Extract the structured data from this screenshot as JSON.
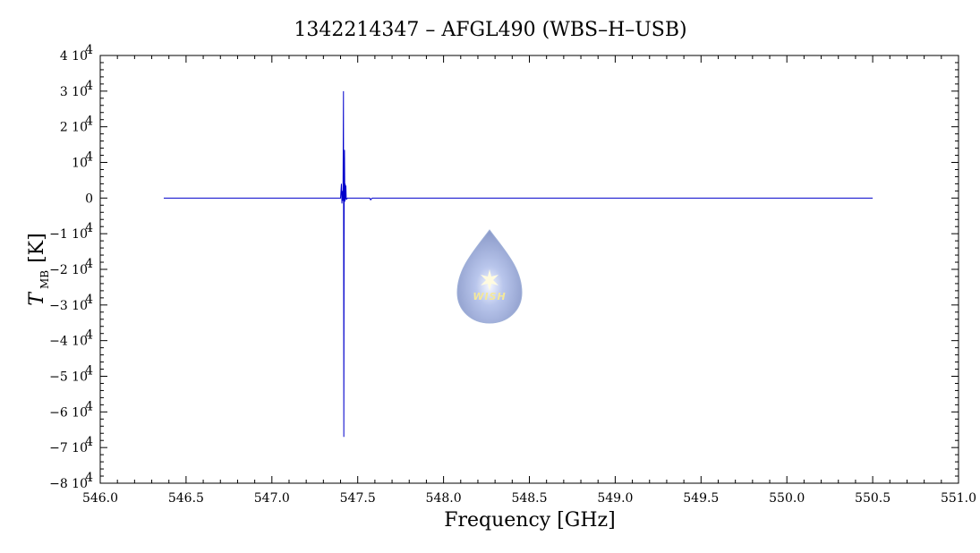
{
  "chart_data": {
    "type": "line",
    "title": "1342214347 – AFGL490 (WBS–H–USB)",
    "xlabel": "Frequency [GHz]",
    "ylabel_main": "T",
    "ylabel_sub": "MB",
    "ylabel_unit": "[K]",
    "xlim": [
      546.0,
      551.0
    ],
    "ylim": [
      -80000,
      40000
    ],
    "x_ticks": [
      {
        "value": 546.0,
        "label": "546.0"
      },
      {
        "value": 546.5,
        "label": "546.5"
      },
      {
        "value": 547.0,
        "label": "547.0"
      },
      {
        "value": 547.5,
        "label": "547.5"
      },
      {
        "value": 548.0,
        "label": "548.0"
      },
      {
        "value": 548.5,
        "label": "548.5"
      },
      {
        "value": 549.0,
        "label": "549.0"
      },
      {
        "value": 549.5,
        "label": "549.5"
      },
      {
        "value": 550.0,
        "label": "550.0"
      },
      {
        "value": 550.5,
        "label": "550.5"
      },
      {
        "value": 551.0,
        "label": "551.0"
      }
    ],
    "y_ticks": [
      {
        "value": 40000,
        "mant": "4 10",
        "exp": "4"
      },
      {
        "value": 30000,
        "mant": "3 10",
        "exp": "4"
      },
      {
        "value": 20000,
        "mant": "2 10",
        "exp": "4"
      },
      {
        "value": 10000,
        "mant": "10",
        "exp": "4"
      },
      {
        "value": 0,
        "mant": "0",
        "exp": ""
      },
      {
        "value": -10000,
        "mant": "−1 10",
        "exp": "4"
      },
      {
        "value": -20000,
        "mant": "−2 10",
        "exp": "4"
      },
      {
        "value": -30000,
        "mant": "−3 10",
        "exp": "4"
      },
      {
        "value": -40000,
        "mant": "−4 10",
        "exp": "4"
      },
      {
        "value": -50000,
        "mant": "−5 10",
        "exp": "4"
      },
      {
        "value": -60000,
        "mant": "−6 10",
        "exp": "4"
      },
      {
        "value": -70000,
        "mant": "−7 10",
        "exp": "4"
      },
      {
        "value": -80000,
        "mant": "−8 10",
        "exp": "4"
      }
    ],
    "series": [
      {
        "color": "#0000cc",
        "x": [
          546.37,
          547.4,
          547.405,
          547.408,
          547.411,
          547.414,
          547.417,
          547.419,
          547.421,
          547.423,
          547.425,
          547.427,
          547.429,
          547.431,
          547.433,
          547.436,
          547.44,
          547.57,
          547.575,
          547.58,
          547.585,
          550.5
        ],
        "y": [
          0,
          0,
          4000,
          -1500,
          2000,
          -800,
          30000,
          -67000,
          1000,
          13500,
          -1000,
          4000,
          -500,
          3500,
          0,
          -300,
          0,
          0,
          -500,
          -200,
          0,
          0
        ]
      }
    ],
    "grid": false,
    "legend": "none"
  },
  "logo": {
    "text": "WISH"
  }
}
